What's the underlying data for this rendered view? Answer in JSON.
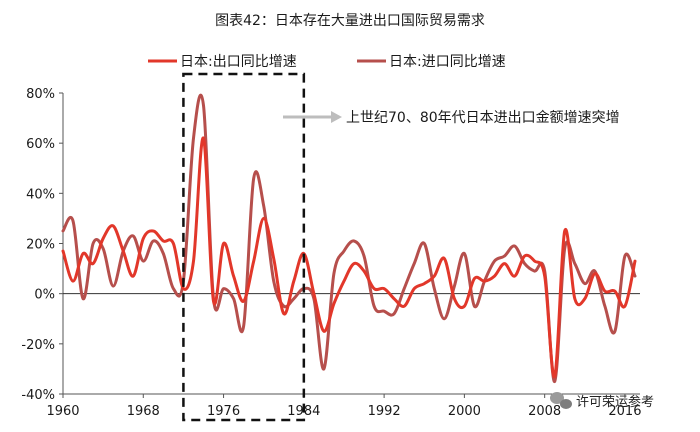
{
  "chart_data": {
    "type": "line",
    "title": "图表42：日本存在大量进出口国际贸易需求",
    "x_ticks": [
      "1960",
      "1968",
      "1976",
      "1984",
      "1992",
      "2000",
      "2008",
      "2016"
    ],
    "y_ticks": [
      "80%",
      "60%",
      "40%",
      "20%",
      "0%",
      "-20%",
      "-40%"
    ],
    "xlim": [
      1960,
      2017.5
    ],
    "ylim": [
      -40,
      80
    ],
    "legend_position": "top",
    "grid": false,
    "series": [
      {
        "name": "日本:出口同比增速",
        "color": "#e2372a",
        "x": [
          1960,
          1961,
          1962,
          1963,
          1964,
          1965,
          1966,
          1967,
          1968,
          1969,
          1970,
          1971,
          1972,
          1973,
          1974,
          1975,
          1976,
          1977,
          1978,
          1979,
          1980,
          1981,
          1982,
          1983,
          1984,
          1985,
          1986,
          1987,
          1988,
          1989,
          1990,
          1991,
          1992,
          1993,
          1994,
          1995,
          1996,
          1997,
          1998,
          1999,
          2000,
          2001,
          2002,
          2003,
          2004,
          2005,
          2006,
          2007,
          2008,
          2009,
          2010,
          2011,
          2012,
          2013,
          2014,
          2015,
          2016,
          2017
        ],
        "values": [
          17,
          5,
          16,
          12,
          22,
          27,
          17,
          7,
          22,
          25,
          21,
          20,
          2,
          13,
          62,
          -3,
          20,
          7,
          -3,
          13,
          30,
          14,
          -8,
          5,
          16,
          0,
          -15,
          -4,
          5,
          12,
          9,
          2,
          2,
          -2,
          -5,
          2,
          4,
          7,
          14,
          -2,
          -5,
          6,
          5,
          7,
          12,
          7,
          15,
          13,
          7,
          -33,
          25,
          -2,
          -2,
          8,
          1,
          1,
          -5,
          13
        ]
      },
      {
        "name": "日本:进口同比增速",
        "color": "#b64f4c",
        "x": [
          1960,
          1961,
          1962,
          1963,
          1964,
          1965,
          1966,
          1967,
          1968,
          1969,
          1970,
          1971,
          1972,
          1973,
          1974,
          1975,
          1976,
          1977,
          1978,
          1979,
          1980,
          1981,
          1982,
          1983,
          1984,
          1985,
          1986,
          1987,
          1988,
          1989,
          1990,
          1991,
          1992,
          1993,
          1994,
          1995,
          1996,
          1997,
          1998,
          1999,
          2000,
          2001,
          2002,
          2003,
          2004,
          2005,
          2006,
          2007,
          2008,
          2009,
          2010,
          2011,
          2012,
          2013,
          2014,
          2015,
          2016,
          2017
        ],
        "values": [
          25,
          29,
          -2,
          20,
          18,
          3,
          17,
          23,
          13,
          21,
          16,
          2,
          5,
          62,
          75,
          -2,
          2,
          -2,
          -13,
          46,
          35,
          5,
          -5,
          -2,
          2,
          -2,
          -30,
          8,
          17,
          21,
          15,
          -5,
          -7,
          -8,
          2,
          12,
          20,
          2,
          -10,
          3,
          16,
          -5,
          5,
          13,
          15,
          19,
          12,
          9,
          9,
          -35,
          18,
          12,
          4,
          9,
          -5,
          -15,
          15,
          7
        ]
      }
    ]
  },
  "annotation": {
    "text": "上世纪70、80年代日本进出口金额增速突增",
    "box_x_range": [
      1972,
      1984
    ]
  },
  "watermark": {
    "text": "许可荣运参考"
  }
}
